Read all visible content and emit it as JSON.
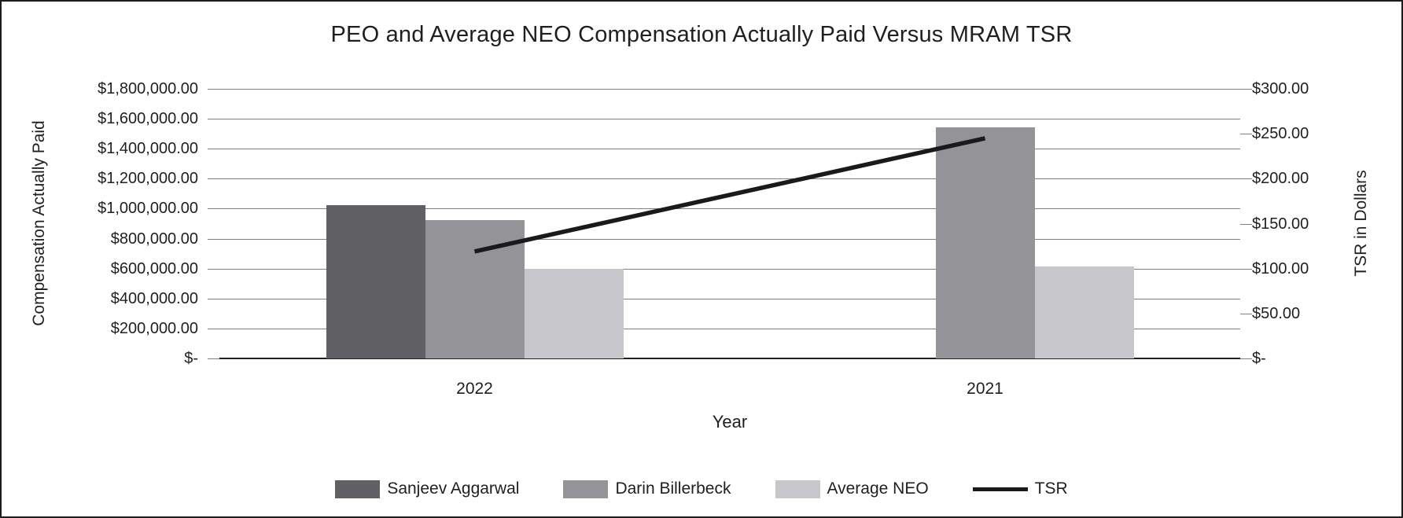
{
  "title": "PEO and Average NEO Compensation Actually Paid Versus MRAM TSR",
  "chart_data": {
    "type": "combo-bar-line",
    "title": "PEO and Average NEO Compensation Actually Paid Versus MRAM TSR",
    "categories": [
      "2022",
      "2021"
    ],
    "series": [
      {
        "name": "Sanjeev Aggarwal",
        "type": "bar",
        "axis": "left",
        "color": "#616065",
        "values": [
          1025000,
          null
        ]
      },
      {
        "name": "Darin Billerbeck",
        "type": "bar",
        "axis": "left",
        "color": "#939398",
        "values": [
          925000,
          1545000
        ]
      },
      {
        "name": "Average NEO",
        "type": "bar",
        "axis": "left",
        "color": "#c7c7cb",
        "values": [
          600000,
          615000
        ]
      },
      {
        "name": "TSR",
        "type": "line",
        "axis": "right",
        "color": "#1a1a1c",
        "values": [
          119,
          245
        ]
      }
    ],
    "xlabel": "Year",
    "ylabel_left": "Compensation Actually Paid",
    "ylabel_right": "TSR in Dollars",
    "y_left": {
      "min": 0,
      "max": 1800000,
      "step": 200000,
      "tick_labels_top_to_bottom": [
        "$1,800,000.00",
        "$1,600,000.00",
        "$1,400,000.00",
        "$1,200,000.00",
        "$1,000,000.00",
        "$800,000.00",
        "$600,000.00",
        "$400,000.00",
        "$200,000.00",
        "$-"
      ]
    },
    "y_right": {
      "min": 0,
      "max": 300,
      "step": 50,
      "tick_labels_top_to_bottom": [
        "$300.00",
        "$250.00",
        "$200.00",
        "$150.00",
        "$100.00",
        "$50.00",
        "$-"
      ]
    },
    "grid": true,
    "legend_position": "bottom"
  },
  "colors": {
    "background": "#ffffff",
    "frame": "#1c1c1c",
    "gridline": "#808080",
    "axis_line": "#1f1f1f",
    "text": "#1f1f1f",
    "bar_dark": "#616065",
    "bar_medium": "#939398",
    "bar_light": "#c7c7cb",
    "line": "#1a1a1c"
  }
}
